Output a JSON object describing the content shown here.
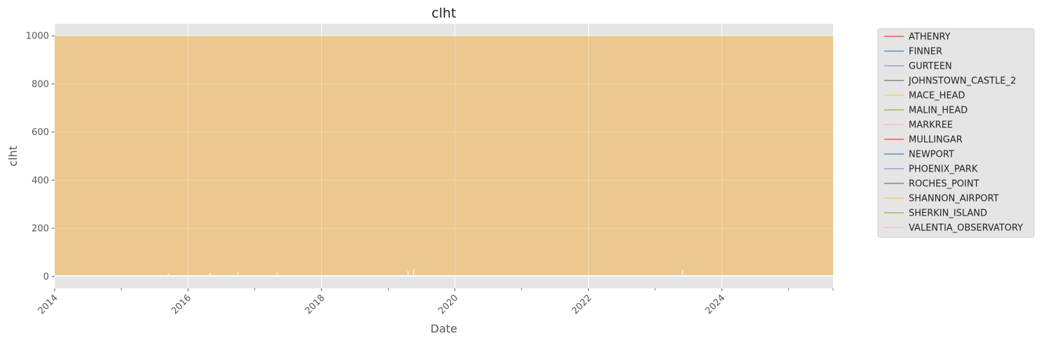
{
  "chart_data": {
    "type": "area",
    "title": "clht",
    "xlabel": "Date",
    "ylabel": "clht",
    "xlim": [
      "2014-01-01",
      "2025-09-01"
    ],
    "ylim": [
      -50,
      1050
    ],
    "x_ticks": [
      "2014",
      "2016",
      "2018",
      "2020",
      "2022",
      "2024"
    ],
    "y_ticks": [
      0,
      200,
      400,
      600,
      800,
      1000
    ],
    "grid": true,
    "legend_placement": "outside-right",
    "series": [
      {
        "name": "ATHENRY",
        "color": "#E24A33",
        "upper": 999,
        "lower": 0
      },
      {
        "name": "FINNER",
        "color": "#348ABD",
        "upper": 999,
        "lower": 0
      },
      {
        "name": "GURTEEN",
        "color": "#988ED5",
        "upper": 999,
        "lower": 0
      },
      {
        "name": "JOHNSTOWN_CASTLE_2",
        "color": "#777777",
        "upper": 999,
        "lower": 0
      },
      {
        "name": "MACE_HEAD",
        "color": "#FBC15E",
        "upper": 999,
        "lower": 0
      },
      {
        "name": "MALIN_HEAD",
        "color": "#8EBA42",
        "upper": 999,
        "lower": 0
      },
      {
        "name": "MARKREE",
        "color": "#FFB5B8",
        "upper": 999,
        "lower": 0
      },
      {
        "name": "MULLINGAR",
        "color": "#E24A33",
        "upper": 999,
        "lower": 0
      },
      {
        "name": "NEWPORT",
        "color": "#348ABD",
        "upper": 999,
        "lower": 0
      },
      {
        "name": "PHOENIX_PARK",
        "color": "#988ED5",
        "upper": 999,
        "lower": 0
      },
      {
        "name": "ROCHES_POINT",
        "color": "#777777",
        "upper": 999,
        "lower": 0
      },
      {
        "name": "SHANNON_AIRPORT",
        "color": "#FBC15E",
        "upper": 999,
        "lower": 0
      },
      {
        "name": "SHERKIN_ISLAND",
        "color": "#8EBA42",
        "upper": 999,
        "lower": 0
      },
      {
        "name": "VALENTIA_OBSERVATORY",
        "color": "#FFB5B8",
        "upper": 999,
        "lower": 0
      }
    ],
    "low_spikes": [
      {
        "x": "2015-09-15",
        "y": 12
      },
      {
        "x": "2016-05-01",
        "y": 15
      },
      {
        "x": "2016-10-01",
        "y": 18
      },
      {
        "x": "2017-05-01",
        "y": 16
      },
      {
        "x": "2019-04-20",
        "y": 25
      },
      {
        "x": "2019-05-20",
        "y": 30
      },
      {
        "x": "2023-06-01",
        "y": 28
      }
    ],
    "colors": {
      "plot_bg": "#E5E5E5",
      "fill": "#F2CA88",
      "grid": "#FFFFFF",
      "legend_bg": "#E5E5E5",
      "legend_border": "#CCCCCC"
    }
  }
}
